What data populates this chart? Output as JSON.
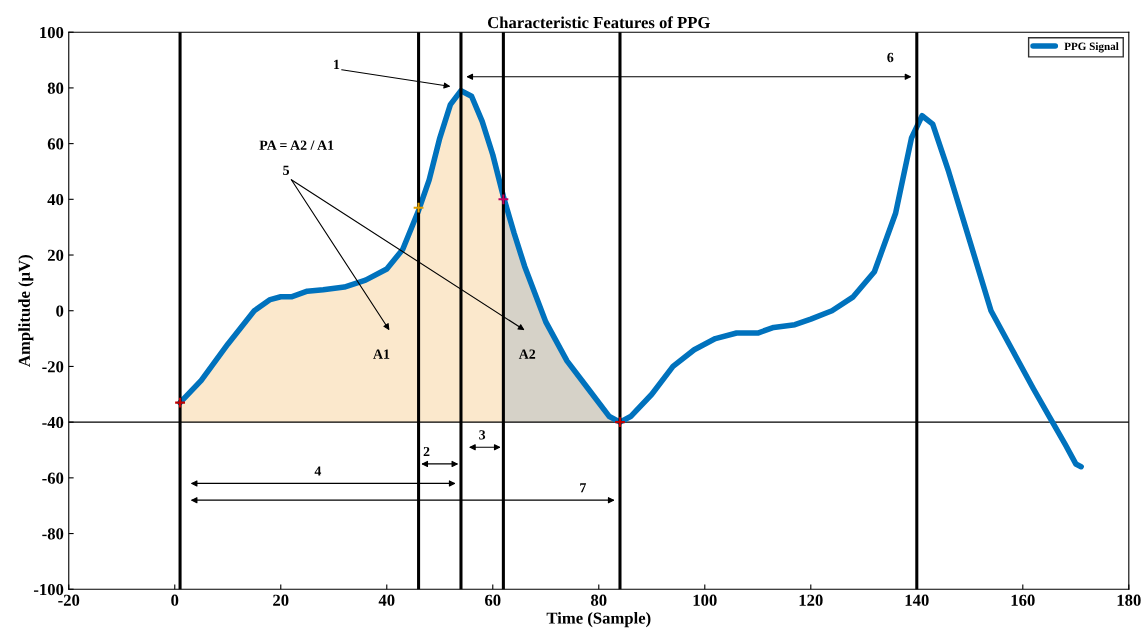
{
  "chart_data": {
    "type": "line",
    "title": "Characteristic Features of PPG",
    "xlabel": "Time (Sample)",
    "ylabel": "Amplitude (μV)",
    "xlim": [
      -20,
      180
    ],
    "ylim": [
      -100,
      100
    ],
    "xticks": [
      -20,
      0,
      20,
      40,
      60,
      80,
      100,
      120,
      140,
      160,
      180
    ],
    "yticks": [
      -100,
      -80,
      -60,
      -40,
      -20,
      0,
      20,
      40,
      60,
      80,
      100
    ],
    "grid": false,
    "legend": "top right",
    "series": [
      {
        "type": "area",
        "color": "#fbe8cc",
        "x": [
          1,
          1,
          5,
          10,
          15,
          18,
          20,
          22,
          25,
          28,
          32,
          36,
          40,
          43,
          46,
          48,
          50,
          52,
          54,
          56,
          58,
          60,
          62,
          62
        ],
        "values": [
          -40,
          -33,
          -25,
          -12,
          0,
          4,
          5,
          5,
          7,
          7.5,
          8.5,
          11,
          15,
          22,
          36,
          47,
          62,
          74,
          79,
          77,
          68,
          56,
          41,
          -40
        ]
      },
      {
        "type": "area",
        "color": "#d6d2c8",
        "x": [
          62,
          62,
          64,
          66,
          70,
          74,
          78,
          82,
          84
        ],
        "values": [
          -40,
          41,
          28,
          16,
          -4,
          -18,
          -28,
          -38,
          -40
        ]
      },
      {
        "name": "PPG Signal",
        "color": "#0072bd",
        "x": [
          1,
          5,
          10,
          15,
          18,
          20,
          22,
          25,
          28,
          32,
          36,
          40,
          43,
          46,
          48,
          50,
          52,
          54,
          56,
          58,
          60,
          62,
          64,
          66,
          70,
          74,
          78,
          82,
          84,
          86,
          90,
          94,
          98,
          102,
          106,
          110,
          113,
          117,
          120,
          124,
          128,
          132,
          136,
          139,
          141,
          143,
          146,
          150,
          154,
          158,
          162,
          165,
          168,
          170,
          171
        ],
        "values": [
          -33,
          -25,
          -12,
          0,
          4,
          5,
          5,
          7,
          7.5,
          8.5,
          11,
          15,
          22,
          36,
          47,
          62,
          74,
          79,
          77,
          68,
          56,
          41,
          28,
          16,
          -4,
          -18,
          -28,
          -38,
          -40,
          -38,
          -30,
          -20,
          -14,
          -10,
          -8,
          -8,
          -6,
          -5,
          -3,
          0,
          5,
          14,
          35,
          62,
          70,
          67,
          50,
          25,
          0,
          -14,
          -28,
          -38,
          -48,
          -55,
          -56
        ]
      },
      {
        "type": "scatter",
        "marker": "cross",
        "x": [
          1,
          46,
          62,
          84
        ],
        "values": [
          -33,
          37,
          40,
          -40
        ],
        "colors": [
          "#c00000",
          "#e0a000",
          "#c00060",
          "#c00000"
        ]
      }
    ],
    "ref_lines": [
      {
        "axis": "y",
        "value": -40,
        "color": "#000000"
      },
      {
        "axis": "x",
        "value": 1,
        "color": "#000000"
      },
      {
        "axis": "x",
        "value": 46,
        "color": "#000000"
      },
      {
        "axis": "x",
        "value": 54,
        "color": "#000000"
      },
      {
        "axis": "x",
        "value": 62,
        "color": "#000000"
      },
      {
        "axis": "x",
        "value": 84,
        "color": "#000000"
      },
      {
        "axis": "x",
        "value": 140,
        "color": "#000000"
      }
    ],
    "annotations": [
      "1",
      "6",
      "PA = A2 / A1",
      "5",
      "A1",
      "A2",
      "2",
      "3",
      "4",
      "7"
    ]
  }
}
